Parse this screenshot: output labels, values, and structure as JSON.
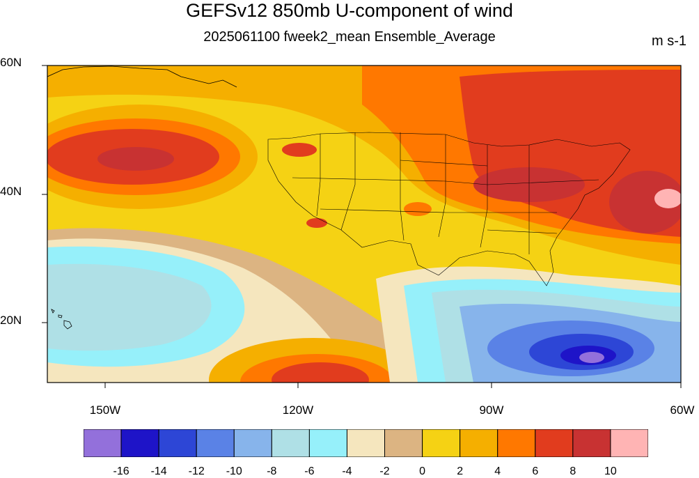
{
  "header": {
    "title": "GEFSv12 850mb U-component of wind",
    "subtitle": "2025061100 fweek2_mean Ensemble_Average",
    "units": "m s-1"
  },
  "axes": {
    "lat_labels": [
      "60N",
      "40N",
      "20N"
    ],
    "lon_labels": [
      "150W",
      "120W",
      "90W",
      "60W"
    ]
  },
  "legend": {
    "colors": [
      "#9370db",
      "#1e14c8",
      "#2d46d6",
      "#5a82e6",
      "#87b4eb",
      "#afe0e6",
      "#96f0fa",
      "#f5e6be",
      "#dcb482",
      "#f5d214",
      "#f5af00",
      "#ff7800",
      "#e13c1e",
      "#c83232",
      "#ffb4b4"
    ],
    "tick_labels": [
      "-16",
      "-14",
      "-12",
      "-10",
      "-8",
      "-6",
      "-4",
      "-2",
      "0",
      "2",
      "4",
      "6",
      "8",
      "10"
    ]
  }
}
